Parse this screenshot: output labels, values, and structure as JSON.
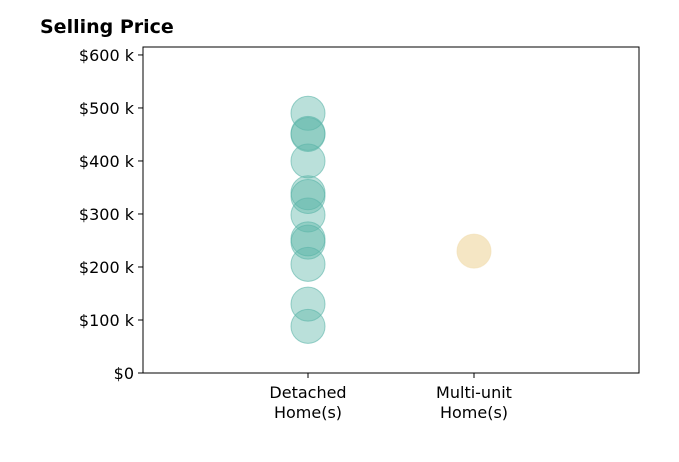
{
  "chart_data": {
    "type": "scatter",
    "title": "Selling Price",
    "xlabel": "",
    "ylabel": "",
    "categories": [
      "Detached Home(s)",
      "Multi-unit Home(s)"
    ],
    "category_lines": [
      [
        "Detached",
        "Home(s)"
      ],
      [
        "Multi-unit",
        "Home(s)"
      ]
    ],
    "y_ticks": [
      0,
      100000,
      200000,
      300000,
      400000,
      500000,
      600000
    ],
    "y_tick_labels": [
      "$0",
      "$100 k",
      "$200 k",
      "$300 k",
      "$400 k",
      "$500 k",
      "$600 k"
    ],
    "ylim": [
      0,
      615000
    ],
    "grid": false,
    "series": [
      {
        "category": "Detached Home(s)",
        "color": "#5ab4a8",
        "values": [
          490000,
          452000,
          450000,
          400000,
          340000,
          333000,
          298000,
          253000,
          247000,
          205000,
          130000,
          88000
        ]
      },
      {
        "category": "Multi-unit Home(s)",
        "color": "#f2deb0",
        "values": [
          230000
        ]
      }
    ]
  }
}
